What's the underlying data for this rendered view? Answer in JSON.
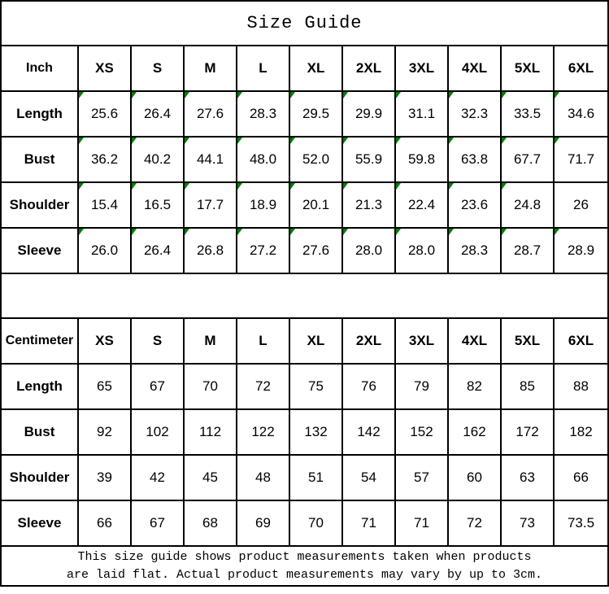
{
  "title": "Size Guide",
  "colors": {
    "border": "#000000",
    "text": "#000000",
    "background": "#ffffff",
    "flag": "#008000"
  },
  "tables": [
    {
      "unit": "Inch",
      "sizes": [
        "XS",
        "S",
        "M",
        "L",
        "XL",
        "2XL",
        "3XL",
        "4XL",
        "5XL",
        "6XL"
      ],
      "rows": [
        {
          "label": "Length",
          "values": [
            "25.6",
            "26.4",
            "27.6",
            "28.3",
            "29.5",
            "29.9",
            "31.1",
            "32.3",
            "33.5",
            "34.6"
          ],
          "flags": [
            true,
            true,
            true,
            true,
            true,
            true,
            true,
            true,
            true,
            true
          ]
        },
        {
          "label": "Bust",
          "values": [
            "36.2",
            "40.2",
            "44.1",
            "48.0",
            "52.0",
            "55.9",
            "59.8",
            "63.8",
            "67.7",
            "71.7"
          ],
          "flags": [
            true,
            true,
            true,
            true,
            true,
            true,
            true,
            true,
            true,
            true
          ]
        },
        {
          "label": "Shoulder",
          "values": [
            "15.4",
            "16.5",
            "17.7",
            "18.9",
            "20.1",
            "21.3",
            "22.4",
            "23.6",
            "24.8",
            "26"
          ],
          "flags": [
            true,
            true,
            true,
            true,
            true,
            true,
            true,
            true,
            true,
            false
          ]
        },
        {
          "label": "Sleeve",
          "values": [
            "26.0",
            "26.4",
            "26.8",
            "27.2",
            "27.6",
            "28.0",
            "28.0",
            "28.3",
            "28.7",
            "28.9"
          ],
          "flags": [
            true,
            true,
            true,
            true,
            true,
            true,
            true,
            true,
            true,
            true
          ]
        }
      ]
    },
    {
      "unit": "Centimeter",
      "sizes": [
        "XS",
        "S",
        "M",
        "L",
        "XL",
        "2XL",
        "3XL",
        "4XL",
        "5XL",
        "6XL"
      ],
      "rows": [
        {
          "label": "Length",
          "values": [
            "65",
            "67",
            "70",
            "72",
            "75",
            "76",
            "79",
            "82",
            "85",
            "88"
          ],
          "flags": [
            false,
            false,
            false,
            false,
            false,
            false,
            false,
            false,
            false,
            false
          ]
        },
        {
          "label": "Bust",
          "values": [
            "92",
            "102",
            "112",
            "122",
            "132",
            "142",
            "152",
            "162",
            "172",
            "182"
          ],
          "flags": [
            false,
            false,
            false,
            false,
            false,
            false,
            false,
            false,
            false,
            false
          ]
        },
        {
          "label": "Shoulder",
          "values": [
            "39",
            "42",
            "45",
            "48",
            "51",
            "54",
            "57",
            "60",
            "63",
            "66"
          ],
          "flags": [
            false,
            false,
            false,
            false,
            false,
            false,
            false,
            false,
            false,
            false
          ]
        },
        {
          "label": "Sleeve",
          "values": [
            "66",
            "67",
            "68",
            "69",
            "70",
            "71",
            "71",
            "72",
            "73",
            "73.5"
          ],
          "flags": [
            false,
            false,
            false,
            false,
            false,
            false,
            false,
            false,
            false,
            false
          ]
        }
      ]
    }
  ],
  "footer": {
    "line1": "This size guide shows product measurements taken when products",
    "line2": "are laid flat. Actual product measurements may vary by up to 3cm."
  }
}
